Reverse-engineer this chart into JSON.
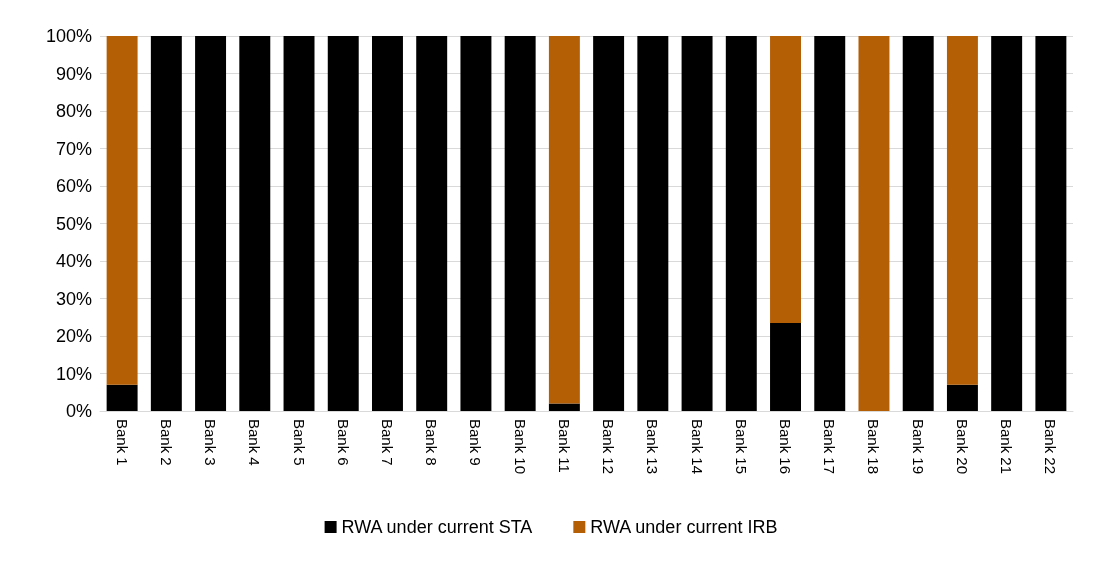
{
  "chart_data": {
    "type": "bar",
    "stacked": true,
    "categories": [
      "Bank 1",
      "Bank 2",
      "Bank 3",
      "Bank 4",
      "Bank 5",
      "Bank 6",
      "Bank 7",
      "Bank 8",
      "Bank 9",
      "Bank 10",
      "Bank 11",
      "Bank 12",
      "Bank 13",
      "Bank 14",
      "Bank 15",
      "Bank 16",
      "Bank 17",
      "Bank 18",
      "Bank 19",
      "Bank 20",
      "Bank 21",
      "Bank 22"
    ],
    "series": [
      {
        "name": "RWA under current STA",
        "color": "#000000",
        "values": [
          7,
          100,
          100,
          100,
          100,
          100,
          100,
          100,
          100,
          100,
          2,
          100,
          100,
          100,
          100,
          23.5,
          100,
          0,
          100,
          7,
          100,
          100
        ]
      },
      {
        "name": "RWA under current IRB",
        "color": "#b45f06",
        "values": [
          93,
          0,
          0,
          0,
          0,
          0,
          0,
          0,
          0,
          0,
          98,
          0,
          0,
          0,
          0,
          76.5,
          0,
          100,
          0,
          93,
          0,
          0
        ]
      }
    ],
    "ylim": [
      0,
      100
    ],
    "yticks": [
      {
        "value": 0,
        "label": "0%"
      },
      {
        "value": 10,
        "label": "10%"
      },
      {
        "value": 20,
        "label": "20%"
      },
      {
        "value": 30,
        "label": "30%"
      },
      {
        "value": 40,
        "label": "40%"
      },
      {
        "value": 50,
        "label": "50%"
      },
      {
        "value": 60,
        "label": "60%"
      },
      {
        "value": 70,
        "label": "70%"
      },
      {
        "value": 80,
        "label": "80%"
      },
      {
        "value": 90,
        "label": "90%"
      },
      {
        "value": 100,
        "label": "100%"
      }
    ],
    "grid": "y",
    "legend": "bottom"
  }
}
